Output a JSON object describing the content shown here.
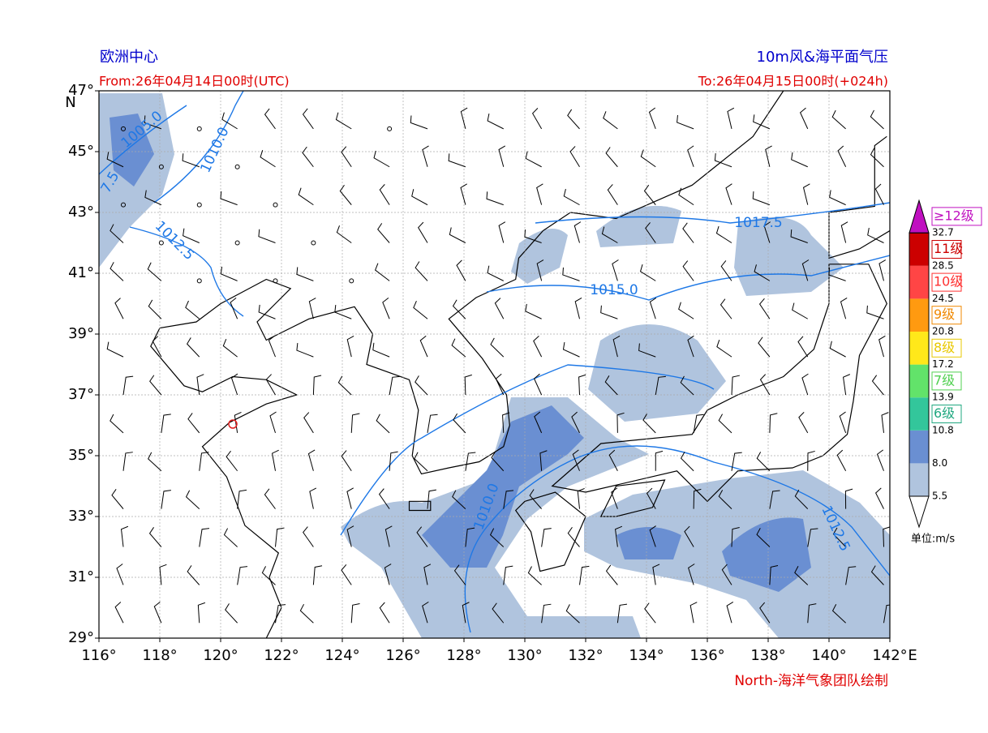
{
  "header": {
    "left_title": "欧洲中心",
    "right_title": "10m风&海平面气压",
    "from": "From:26年04月14日00时(UTC)",
    "to": "To:26年04月15日00时(+024h)",
    "credit": "North-海洋气象团队绘制"
  },
  "axes": {
    "lon_ticks": [
      {
        "value": 116,
        "label": "116°"
      },
      {
        "value": 118,
        "label": "118°"
      },
      {
        "value": 120,
        "label": "120°"
      },
      {
        "value": 122,
        "label": "122°"
      },
      {
        "value": 124,
        "label": "124°"
      },
      {
        "value": 126,
        "label": "126°"
      },
      {
        "value": 128,
        "label": "128°"
      },
      {
        "value": 130,
        "label": "130°"
      },
      {
        "value": 132,
        "label": "132°"
      },
      {
        "value": 134,
        "label": "134°"
      },
      {
        "value": 136,
        "label": "136°"
      },
      {
        "value": 138,
        "label": "138°"
      },
      {
        "value": 140,
        "label": "140°"
      },
      {
        "value": 142,
        "label": "142°"
      }
    ],
    "lat_ticks": [
      {
        "value": 29,
        "label": "29°"
      },
      {
        "value": 31,
        "label": "31°"
      },
      {
        "value": 33,
        "label": "33°"
      },
      {
        "value": 35,
        "label": "35°"
      },
      {
        "value": 37,
        "label": "37°"
      },
      {
        "value": 39,
        "label": "39°"
      },
      {
        "value": 41,
        "label": "41°"
      },
      {
        "value": 43,
        "label": "43°"
      },
      {
        "value": 45,
        "label": "45°"
      },
      {
        "value": 47,
        "label": "47°"
      }
    ],
    "lon_unit": "E",
    "lat_unit": "N"
  },
  "colorbar": {
    "levels": [
      5.5,
      {
        "value": 8,
        "label": "8.0"
      },
      10.8,
      13.9,
      17.2,
      20.8,
      24.5,
      28.5,
      32.7
    ],
    "colors": [
      "#b0c4de",
      "#6a8fd2",
      "#33c69b",
      "#62e36a",
      "#ffe81a",
      "#ff9a10",
      "#ff4545",
      "#cc0000"
    ],
    "top_color": "#c010c0",
    "grades": [
      "6级",
      "7级",
      "8级",
      "9级",
      "10级",
      "11级",
      "≥12级"
    ],
    "grade_colors": [
      "#20a880",
      "#50d050",
      "#e8c800",
      "#f08800",
      "#ff3030",
      "#cc0000",
      "#c010c0"
    ],
    "unit": "单位:m/s"
  },
  "contour_labels": [
    "1005.0",
    "1010.0",
    "7.5",
    "1012.5",
    "1017.5",
    "1015.0",
    "1010.0",
    "1012.5"
  ]
}
